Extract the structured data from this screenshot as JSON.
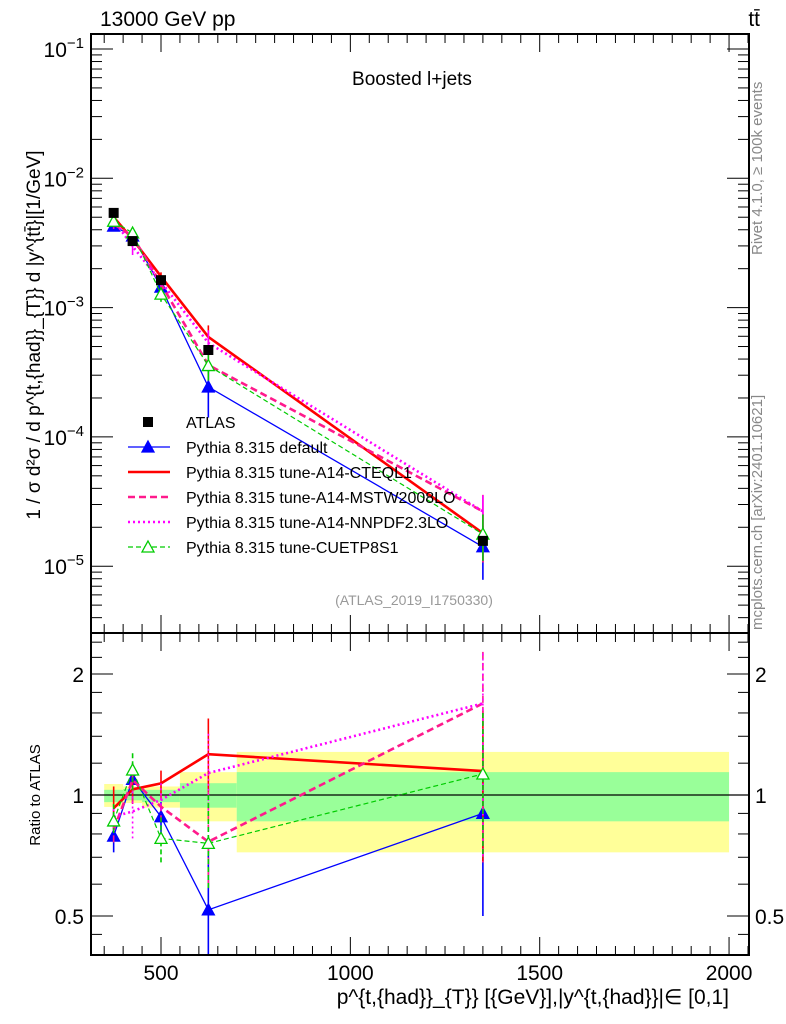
{
  "header": {
    "energy_label": "13000 GeV pp",
    "process_label": "tt̄"
  },
  "side": {
    "rivet_label": "Rivet 4.1.0, ≥ 100k events",
    "mcplots_label": "mcplots.cern.ch [arXiv:2401.10621]"
  },
  "chart_data": [
    {
      "type": "line",
      "panel": "main",
      "title": "Boosted l+jets",
      "analysis_label": "(ATLAS_2019_I1750330)",
      "ylabel": "1 / σ d²σ / d p^{t,{had}}_{T}} d |y^{tt̄}|[1/GeV]",
      "yscale": "log",
      "xlim": [
        315,
        2050
      ],
      "ylim": [
        3e-06,
        0.13
      ],
      "y_tick_labels": [
        "10^-5",
        "10^-4",
        "10^-3",
        "10^-2",
        "10^-1"
      ],
      "legend_position": "bottom-left",
      "x": [
        375,
        425,
        500,
        625,
        1350
      ],
      "data": {
        "name": "ATLAS",
        "values": [
          0.0054,
          0.00327,
          0.00163,
          0.00047,
          1.57e-05
        ]
      },
      "series": [
        {
          "name": "Pythia 8.315 default",
          "color": "#0000ff",
          "style": "solid",
          "marker": "filled-triangle",
          "ratio": [
            0.79,
            1.094,
            0.883,
            0.518,
            0.9
          ],
          "err": [
            [
              0.72,
              0.92
            ],
            [
              1.0,
              1.2
            ],
            [
              0.8,
              0.96
            ],
            [
              0.3,
              0.75
            ],
            [
              0.5,
              1.31
            ]
          ]
        },
        {
          "name": "Pythia 8.315 tune-A14-CTEQL1",
          "color": "#ff0000",
          "style": "solid-thick",
          "marker": "none",
          "ratio": [
            0.927,
            1.033,
            1.069,
            1.263,
            1.147
          ],
          "err": [
            [
              0.82,
              1.05
            ],
            [
              0.95,
              1.13
            ],
            [
              0.98,
              1.15
            ],
            [
              1.02,
              1.55
            ],
            [
              0.68,
              1.62
            ]
          ]
        },
        {
          "name": "Pythia 8.315 tune-A14-MSTW2008LO",
          "color": "#ff1a8c",
          "style": "dashed",
          "marker": "none",
          "ratio": [
            0.82,
            1.09,
            0.935,
            0.765,
            1.69
          ],
          "err": [
            [
              0.75,
              0.9
            ],
            [
              0.95,
              1.2
            ],
            [
              0.86,
              1.01
            ],
            [
              0.58,
              1.02
            ],
            [
              0.68,
              2.27
            ]
          ]
        },
        {
          "name": "Pythia 8.315 tune-A14-NNPDF2.3LO",
          "color": "#ff00ff",
          "style": "dotted",
          "marker": "none",
          "ratio": [
            0.883,
            0.91,
            0.972,
            1.134,
            1.69
          ],
          "err": [
            [
              0.8,
              0.95
            ],
            [
              0.78,
              1.05
            ],
            [
              0.9,
              1.07
            ],
            [
              0.9,
              1.42
            ],
            [
              0.7,
              2.25
            ]
          ]
        },
        {
          "name": "Pythia 8.315 tune-CUETP8S1",
          "color": "#00cc00",
          "style": "dashed-thin",
          "marker": "open-triangle",
          "ratio": [
            0.862,
            1.154,
            0.78,
            0.758,
            1.128
          ],
          "err": [
            [
              0.8,
              0.95
            ],
            [
              1.02,
              1.27
            ],
            [
              0.68,
              0.88
            ],
            [
              0.58,
              1.0
            ],
            [
              0.7,
              1.6
            ]
          ]
        }
      ]
    },
    {
      "type": "line",
      "panel": "ratio",
      "ylabel": "Ratio to ATLAS",
      "xlabel": "p^{t,{had}}_{T}} [{GeV}],|y^{t,{had}}|∈ [0,1]",
      "yscale": "log2",
      "ylim": [
        0.4,
        2.53
      ],
      "y_ticks": [
        0.5,
        1,
        2
      ],
      "y_tick_labels": [
        "0.5",
        "1",
        "2"
      ],
      "x_ticks": [
        500,
        1000,
        1500,
        2000
      ],
      "x_tick_labels": [
        "500",
        "1000",
        "1500",
        "2000"
      ],
      "bins": [
        [
          350,
          400
        ],
        [
          400,
          450
        ],
        [
          450,
          550
        ],
        [
          550,
          700
        ],
        [
          700,
          2000
        ]
      ],
      "band_1sigma": [
        [
          0.96,
          1.03
        ],
        [
          0.97,
          1.035
        ],
        [
          0.96,
          1.03
        ],
        [
          0.93,
          1.07
        ],
        [
          0.86,
          1.14
        ]
      ],
      "band_2sigma": [
        [
          0.934,
          1.065
        ],
        [
          0.955,
          1.05
        ],
        [
          0.93,
          1.05
        ],
        [
          0.86,
          1.14
        ],
        [
          0.72,
          1.28
        ]
      ],
      "colors": {
        "band_1sigma": "#99ff99",
        "band_2sigma": "#ffff99"
      }
    }
  ]
}
